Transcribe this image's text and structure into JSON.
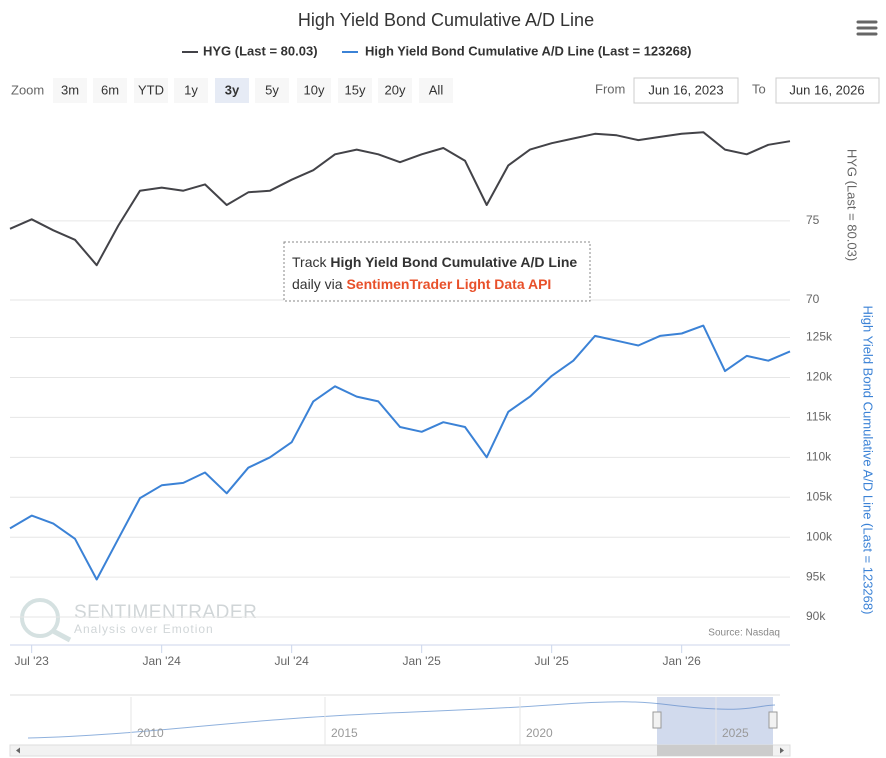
{
  "chart_data": [
    {
      "type": "line",
      "title": "High Yield Bond Cumulative A/D Line",
      "x": [
        "2023-06",
        "2023-07",
        "2023-08",
        "2023-09",
        "2023-10",
        "2023-11",
        "2023-12",
        "2024-01",
        "2024-02",
        "2024-03",
        "2024-04",
        "2024-05",
        "2024-06",
        "2024-07",
        "2024-08",
        "2024-09",
        "2024-10",
        "2024-11",
        "2024-12",
        "2025-01",
        "2025-02",
        "2025-03",
        "2025-04",
        "2025-05",
        "2025-06",
        "2025-07",
        "2025-08",
        "2025-09",
        "2025-10",
        "2025-11",
        "2025-12",
        "2026-01",
        "2026-02",
        "2026-03",
        "2026-04",
        "2026-05",
        "2026-06"
      ],
      "xlim": [
        "2023-06",
        "2026-06"
      ],
      "series": [
        {
          "name": "HYG (Last = 80.03)",
          "color": "#434348",
          "values": [
            74.5,
            75.1,
            74.4,
            73.8,
            72.2,
            74.7,
            76.9,
            77.1,
            76.9,
            77.3,
            76.0,
            76.8,
            76.9,
            77.6,
            78.2,
            79.2,
            79.5,
            79.2,
            78.7,
            79.2,
            79.6,
            78.8,
            76.0,
            78.5,
            79.5,
            79.9,
            80.2,
            80.5,
            80.4,
            80.1,
            80.3,
            80.5,
            80.6,
            79.5,
            79.2,
            79.8,
            80.03
          ]
        }
      ],
      "ylim": [
        70,
        82
      ],
      "yticks": [
        70,
        75
      ],
      "grid": true
    },
    {
      "type": "line",
      "x": [
        "2023-06",
        "2023-07",
        "2023-08",
        "2023-09",
        "2023-10",
        "2023-11",
        "2023-12",
        "2024-01",
        "2024-02",
        "2024-03",
        "2024-04",
        "2024-05",
        "2024-06",
        "2024-07",
        "2024-08",
        "2024-09",
        "2024-10",
        "2024-11",
        "2024-12",
        "2025-01",
        "2025-02",
        "2025-03",
        "2025-04",
        "2025-05",
        "2025-06",
        "2025-07",
        "2025-08",
        "2025-09",
        "2025-10",
        "2025-11",
        "2025-12",
        "2026-01",
        "2026-02",
        "2026-03",
        "2026-04",
        "2026-05",
        "2026-06"
      ],
      "xlim": [
        "2023-06",
        "2026-06"
      ],
      "xticks": [
        {
          "value": "2023-07",
          "label": "Jul '23"
        },
        {
          "value": "2024-01",
          "label": "Jan '24"
        },
        {
          "value": "2024-07",
          "label": "Jul '24"
        },
        {
          "value": "2025-01",
          "label": "Jan '25"
        },
        {
          "value": "2025-07",
          "label": "Jul '25"
        },
        {
          "value": "2026-01",
          "label": "Jan '26"
        }
      ],
      "series": [
        {
          "name": "High Yield Bond Cumulative A/D Line (Last = 123268)",
          "color": "#3b82d6",
          "values": [
            101100,
            102700,
            101700,
            99800,
            94700,
            99800,
            104900,
            106500,
            106800,
            108100,
            105500,
            108700,
            110000,
            111900,
            117000,
            118900,
            117600,
            117000,
            113800,
            113200,
            114400,
            113800,
            110000,
            115700,
            117600,
            120200,
            122100,
            125200,
            124600,
            124000,
            125200,
            125500,
            126500,
            120800,
            122700,
            122100,
            123268
          ]
        }
      ],
      "ylim": [
        86500,
        129700
      ],
      "yticks": [
        {
          "value": 90000,
          "label": "90k"
        },
        {
          "value": 95000,
          "label": "95k"
        },
        {
          "value": 100000,
          "label": "100k"
        },
        {
          "value": 105000,
          "label": "105k"
        },
        {
          "value": 110000,
          "label": "110k"
        },
        {
          "value": 115000,
          "label": "115k"
        },
        {
          "value": 120000,
          "label": "120k"
        },
        {
          "value": 125000,
          "label": "125k"
        }
      ],
      "grid": true,
      "credit": "Source: Nasdaq"
    }
  ],
  "zoom": {
    "label": "Zoom",
    "buttons": [
      "3m",
      "6m",
      "YTD",
      "1y",
      "3y",
      "5y",
      "10y",
      "15y",
      "20y",
      "All"
    ],
    "selected": "3y"
  },
  "range": {
    "from_label": "From",
    "from": "Jun 16, 2023",
    "to_label": "To",
    "to": "Jun 16, 2026"
  },
  "annotation": {
    "line1": [
      "Track ",
      "High Yield Bond Cumulative A/D Line"
    ],
    "line2": [
      "daily via ",
      "SentimenTrader Light Data API"
    ]
  },
  "watermark": {
    "brand": "SENTIMENTRADER",
    "tagline": "Analysis over Emotion"
  },
  "navigator": {
    "labels": [
      "2010",
      "2015",
      "2020",
      "2025"
    ]
  }
}
